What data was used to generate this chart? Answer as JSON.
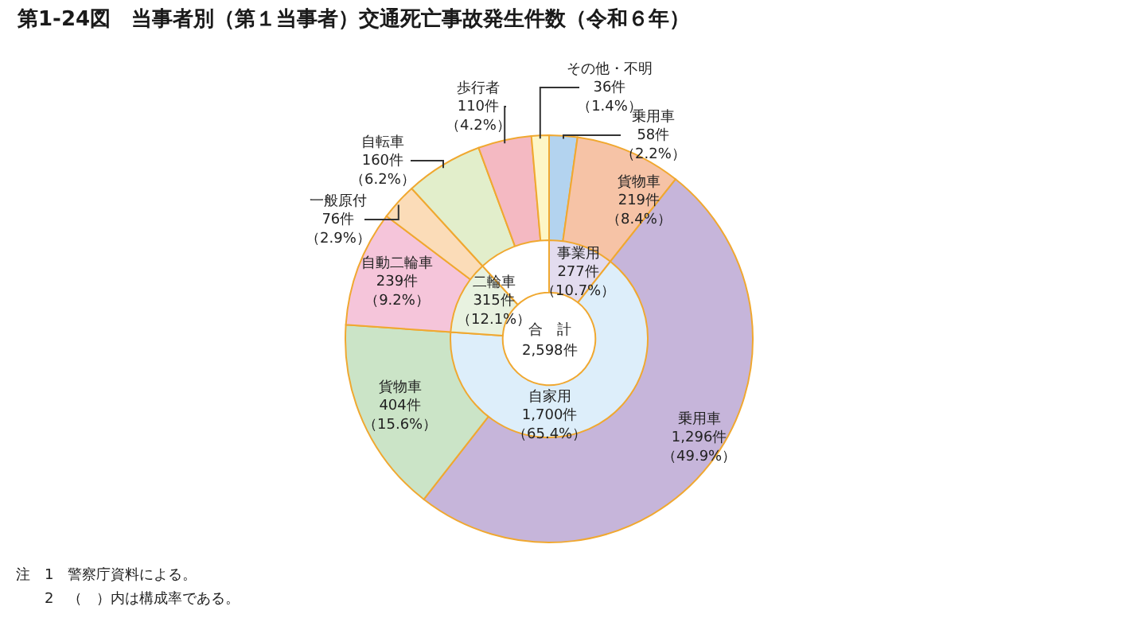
{
  "chart_data": [
    {
      "type": "donut",
      "title": "第1-24図　当事者別（第１当事者）交通死亡事故発生件数（令和６年）",
      "categories": [
        "乗用車",
        "貨物車",
        "乗用車",
        "貨物車",
        "自動二輪車",
        "一般原付",
        "自転車",
        "歩行者",
        "その他・不明"
      ],
      "values": [
        58,
        219,
        1296,
        404,
        239,
        76,
        160,
        110,
        36
      ],
      "value_labels": [
        "58件（2.2%）",
        "219件（8.4%）",
        "1,296件（49.9%）",
        "404件（15.6%）",
        "239件（9.2%）",
        "76件（2.9%）",
        "160件（6.2%）",
        "110件（4.2%）",
        "36件（1.4%）"
      ],
      "colors": [
        "#b3d3ef",
        "#f6c3a6",
        "#c6b5da",
        "#cbe4c7",
        "#f5c5da",
        "#fbdcb8",
        "#e2eecb",
        "#f4b9c2",
        "#fdf6c6"
      ],
      "annotations": [
        "注　1　警察庁資料による。",
        "　　2　（　）内は構成率である。"
      ]
    },
    {
      "type": "donut",
      "categories": [
        "事業用",
        "自家用",
        "二輪車",
        null
      ],
      "values": [
        277,
        1700,
        315,
        306
      ],
      "value_labels": [
        "277件（10.7%）",
        "1,700件（65.4%）",
        "315件（12.1%）",
        null
      ],
      "colors": [
        "#e3dcef",
        "#ddeefa",
        "#e8f2e0",
        "#ffffff"
      ],
      "annotations": [
        "合　計",
        "2,598件"
      ]
    }
  ]
}
